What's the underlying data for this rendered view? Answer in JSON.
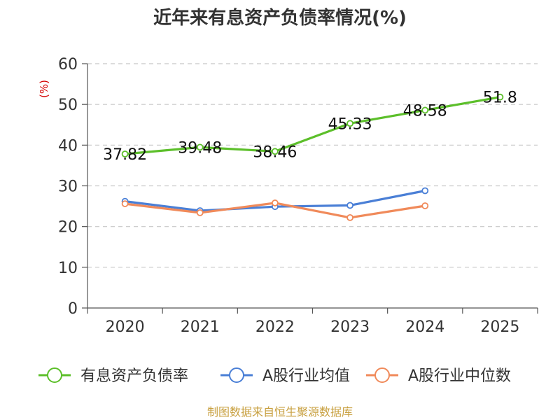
{
  "chart_data": {
    "type": "line",
    "title": "近年来有息资产负债率情况(%)",
    "ylabel": "(%)",
    "xlabel": "",
    "categories": [
      "2020",
      "2021",
      "2022",
      "2023",
      "2024",
      "2025"
    ],
    "ylim": [
      0,
      60
    ],
    "yticks": [
      "0",
      "10",
      "20",
      "30",
      "40",
      "50",
      "60"
    ],
    "grid": true,
    "legend_position": "bottom",
    "series": [
      {
        "name": "有息资产负债率",
        "color": "#5cbf2a",
        "values": [
          37.82,
          39.48,
          38.46,
          45.33,
          48.58,
          51.8
        ],
        "labels": [
          "37.82",
          "39.48",
          "38.46",
          "45.33",
          "48.58",
          "51.8"
        ]
      },
      {
        "name": "A股行业均值",
        "color": "#4a7fd6",
        "values": [
          26.2,
          23.9,
          24.9,
          25.2,
          28.8,
          null
        ]
      },
      {
        "name": "A股行业中位数",
        "color": "#f08a5a",
        "values": [
          25.6,
          23.4,
          25.8,
          22.2,
          25.1,
          null
        ]
      }
    ]
  },
  "source": "制图数据来自恒生聚源数据库"
}
